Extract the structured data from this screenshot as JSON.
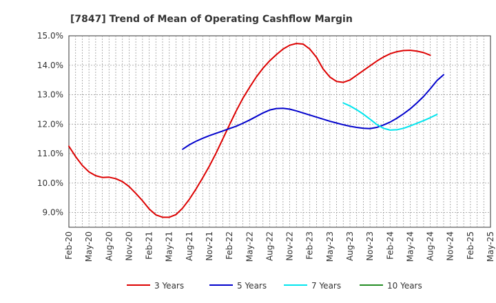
{
  "chart_data": {
    "type": "line",
    "title": "[7847]  Trend of Mean of Operating Cashflow Margin",
    "xlabel": "",
    "ylabel": "",
    "ylim": [
      8.5,
      15.0
    ],
    "y_ticks": [
      "9.0%",
      "10.0%",
      "11.0%",
      "12.0%",
      "13.0%",
      "14.0%",
      "15.0%"
    ],
    "x_ticks": [
      "Feb-20",
      "May-20",
      "Aug-20",
      "Nov-20",
      "Feb-21",
      "May-21",
      "Aug-21",
      "Nov-21",
      "Feb-22",
      "May-22",
      "Aug-22",
      "Nov-22",
      "Feb-23",
      "May-23",
      "Aug-23",
      "Nov-23",
      "Feb-24",
      "May-24",
      "Aug-24",
      "Nov-24",
      "Feb-25",
      "May-25"
    ],
    "grid": true,
    "legend_position": "bottom",
    "series": [
      {
        "name": "3 Years",
        "color": "#dd0000",
        "points": [
          [
            "Feb-20",
            11.25
          ],
          [
            "Mar-20",
            10.9
          ],
          [
            "Apr-20",
            10.6
          ],
          [
            "May-20",
            10.38
          ],
          [
            "Jun-20",
            10.25
          ],
          [
            "Jul-20",
            10.19
          ],
          [
            "Aug-20",
            10.2
          ],
          [
            "Sep-20",
            10.15
          ],
          [
            "Oct-20",
            10.05
          ],
          [
            "Nov-20",
            9.88
          ],
          [
            "Dec-20",
            9.65
          ],
          [
            "Jan-21",
            9.4
          ],
          [
            "Feb-21",
            9.12
          ],
          [
            "Mar-21",
            8.92
          ],
          [
            "Apr-21",
            8.84
          ],
          [
            "May-21",
            8.84
          ],
          [
            "Jun-21",
            8.93
          ],
          [
            "Jul-21",
            9.15
          ],
          [
            "Aug-21",
            9.45
          ],
          [
            "Sep-21",
            9.8
          ],
          [
            "Oct-21",
            10.18
          ],
          [
            "Nov-21",
            10.58
          ],
          [
            "Dec-21",
            11.02
          ],
          [
            "Jan-22",
            11.5
          ],
          [
            "Feb-22",
            11.98
          ],
          [
            "Mar-22",
            12.45
          ],
          [
            "Apr-22",
            12.88
          ],
          [
            "May-22",
            13.25
          ],
          [
            "Jun-22",
            13.6
          ],
          [
            "Jul-22",
            13.9
          ],
          [
            "Aug-22",
            14.15
          ],
          [
            "Sep-22",
            14.36
          ],
          [
            "Oct-22",
            14.55
          ],
          [
            "Nov-22",
            14.68
          ],
          [
            "Dec-22",
            14.74
          ],
          [
            "Jan-23",
            14.72
          ],
          [
            "Feb-23",
            14.55
          ],
          [
            "Mar-23",
            14.27
          ],
          [
            "Apr-23",
            13.87
          ],
          [
            "May-23",
            13.6
          ],
          [
            "Jun-23",
            13.45
          ],
          [
            "Jul-23",
            13.42
          ],
          [
            "Aug-23",
            13.5
          ],
          [
            "Sep-23",
            13.66
          ],
          [
            "Oct-23",
            13.82
          ],
          [
            "Nov-23",
            13.98
          ],
          [
            "Dec-23",
            14.14
          ],
          [
            "Jan-24",
            14.28
          ],
          [
            "Feb-24",
            14.39
          ],
          [
            "Mar-24",
            14.46
          ],
          [
            "Apr-24",
            14.5
          ],
          [
            "May-24",
            14.51
          ],
          [
            "Jun-24",
            14.48
          ],
          [
            "Jul-24",
            14.43
          ],
          [
            "Aug-24",
            14.34
          ]
        ]
      },
      {
        "name": "5 Years",
        "color": "#0000cc",
        "points": [
          [
            "Jul-21",
            11.15
          ],
          [
            "Aug-21",
            11.3
          ],
          [
            "Sep-21",
            11.42
          ],
          [
            "Oct-21",
            11.52
          ],
          [
            "Nov-21",
            11.61
          ],
          [
            "Dec-21",
            11.69
          ],
          [
            "Jan-22",
            11.77
          ],
          [
            "Feb-22",
            11.85
          ],
          [
            "Mar-22",
            11.93
          ],
          [
            "Apr-22",
            12.03
          ],
          [
            "May-22",
            12.14
          ],
          [
            "Jun-22",
            12.26
          ],
          [
            "Jul-22",
            12.38
          ],
          [
            "Aug-22",
            12.48
          ],
          [
            "Sep-22",
            12.53
          ],
          [
            "Oct-22",
            12.54
          ],
          [
            "Nov-22",
            12.51
          ],
          [
            "Dec-22",
            12.45
          ],
          [
            "Jan-23",
            12.38
          ],
          [
            "Feb-23",
            12.31
          ],
          [
            "Mar-23",
            12.24
          ],
          [
            "Apr-23",
            12.17
          ],
          [
            "May-23",
            12.1
          ],
          [
            "Jun-23",
            12.04
          ],
          [
            "Jul-23",
            11.98
          ],
          [
            "Aug-23",
            11.93
          ],
          [
            "Sep-23",
            11.89
          ],
          [
            "Oct-23",
            11.86
          ],
          [
            "Nov-23",
            11.85
          ],
          [
            "Dec-23",
            11.89
          ],
          [
            "Jan-24",
            11.97
          ],
          [
            "Feb-24",
            12.07
          ],
          [
            "Mar-24",
            12.2
          ],
          [
            "Apr-24",
            12.35
          ],
          [
            "May-24",
            12.52
          ],
          [
            "Jun-24",
            12.72
          ],
          [
            "Jul-24",
            12.94
          ],
          [
            "Aug-24",
            13.2
          ],
          [
            "Sep-24",
            13.48
          ],
          [
            "Oct-24",
            13.68
          ]
        ]
      },
      {
        "name": "7 Years",
        "color": "#00e5ee",
        "points": [
          [
            "Jul-23",
            12.72
          ],
          [
            "Aug-23",
            12.62
          ],
          [
            "Sep-23",
            12.49
          ],
          [
            "Oct-23",
            12.34
          ],
          [
            "Nov-23",
            12.17
          ],
          [
            "Dec-23",
            11.99
          ],
          [
            "Jan-24",
            11.86
          ],
          [
            "Feb-24",
            11.8
          ],
          [
            "Mar-24",
            11.81
          ],
          [
            "Apr-24",
            11.86
          ],
          [
            "May-24",
            11.94
          ],
          [
            "Jun-24",
            12.03
          ],
          [
            "Jul-24",
            12.12
          ],
          [
            "Aug-24",
            12.22
          ],
          [
            "Sep-24",
            12.33
          ]
        ]
      },
      {
        "name": "10 Years",
        "color": "#228b22",
        "points": []
      }
    ]
  }
}
